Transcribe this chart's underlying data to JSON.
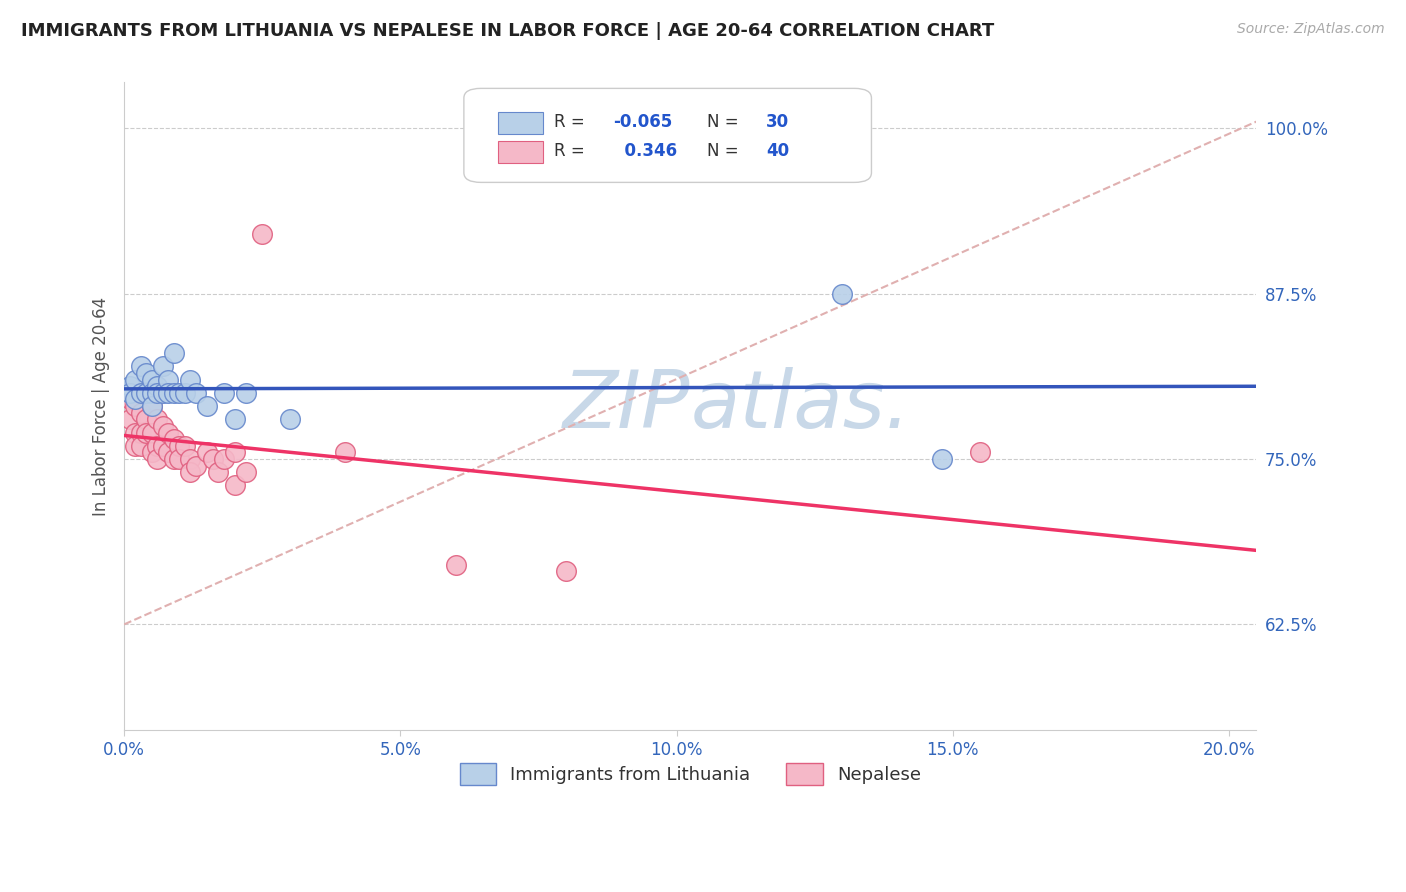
{
  "title": "IMMIGRANTS FROM LITHUANIA VS NEPALESE IN LABOR FORCE | AGE 20-64 CORRELATION CHART",
  "source": "Source: ZipAtlas.com",
  "ylabel": "In Labor Force | Age 20-64",
  "xlim": [
    0.0,
    0.205
  ],
  "ylim": [
    0.545,
    1.035
  ],
  "yticks": [
    0.625,
    0.75,
    0.875,
    1.0
  ],
  "ytick_labels": [
    "62.5%",
    "75.0%",
    "87.5%",
    "100.0%"
  ],
  "xticks": [
    0.0,
    0.05,
    0.1,
    0.15,
    0.2
  ],
  "xtick_labels": [
    "0.0%",
    "5.0%",
    "10.0%",
    "15.0%",
    "20.0%"
  ],
  "blue_R": -0.065,
  "blue_N": 30,
  "pink_R": 0.346,
  "pink_N": 40,
  "blue_scatter_x": [
    0.001,
    0.001,
    0.002,
    0.002,
    0.003,
    0.003,
    0.004,
    0.004,
    0.005,
    0.005,
    0.005,
    0.006,
    0.006,
    0.007,
    0.007,
    0.008,
    0.008,
    0.009,
    0.009,
    0.01,
    0.011,
    0.012,
    0.013,
    0.015,
    0.018,
    0.02,
    0.022,
    0.03,
    0.13,
    0.148
  ],
  "blue_scatter_y": [
    0.805,
    0.8,
    0.81,
    0.795,
    0.82,
    0.8,
    0.815,
    0.8,
    0.81,
    0.8,
    0.79,
    0.805,
    0.8,
    0.82,
    0.8,
    0.81,
    0.8,
    0.83,
    0.8,
    0.8,
    0.8,
    0.81,
    0.8,
    0.79,
    0.8,
    0.78,
    0.8,
    0.78,
    0.875,
    0.75
  ],
  "pink_scatter_x": [
    0.001,
    0.001,
    0.002,
    0.002,
    0.002,
    0.003,
    0.003,
    0.003,
    0.004,
    0.004,
    0.005,
    0.005,
    0.005,
    0.006,
    0.006,
    0.006,
    0.007,
    0.007,
    0.008,
    0.008,
    0.009,
    0.009,
    0.01,
    0.01,
    0.011,
    0.012,
    0.012,
    0.013,
    0.015,
    0.016,
    0.017,
    0.018,
    0.02,
    0.02,
    0.022,
    0.025,
    0.04,
    0.06,
    0.08,
    0.155
  ],
  "pink_scatter_y": [
    0.795,
    0.78,
    0.79,
    0.77,
    0.76,
    0.785,
    0.77,
    0.76,
    0.78,
    0.77,
    0.79,
    0.77,
    0.755,
    0.78,
    0.76,
    0.75,
    0.775,
    0.76,
    0.77,
    0.755,
    0.765,
    0.75,
    0.76,
    0.75,
    0.76,
    0.75,
    0.74,
    0.745,
    0.755,
    0.75,
    0.74,
    0.75,
    0.73,
    0.755,
    0.74,
    0.92,
    0.755,
    0.67,
    0.665,
    0.755
  ],
  "blue_color": "#b8d0e8",
  "blue_edge_color": "#6688cc",
  "pink_color": "#f5b8c8",
  "pink_edge_color": "#e06080",
  "blue_line_color": "#3355bb",
  "pink_line_color": "#ee3366",
  "ref_line_color": "#e0b0b0",
  "grid_color": "#cccccc",
  "title_color": "#222222",
  "tick_label_color": "#3366bb",
  "source_color": "#aaaaaa",
  "background_color": "#ffffff"
}
